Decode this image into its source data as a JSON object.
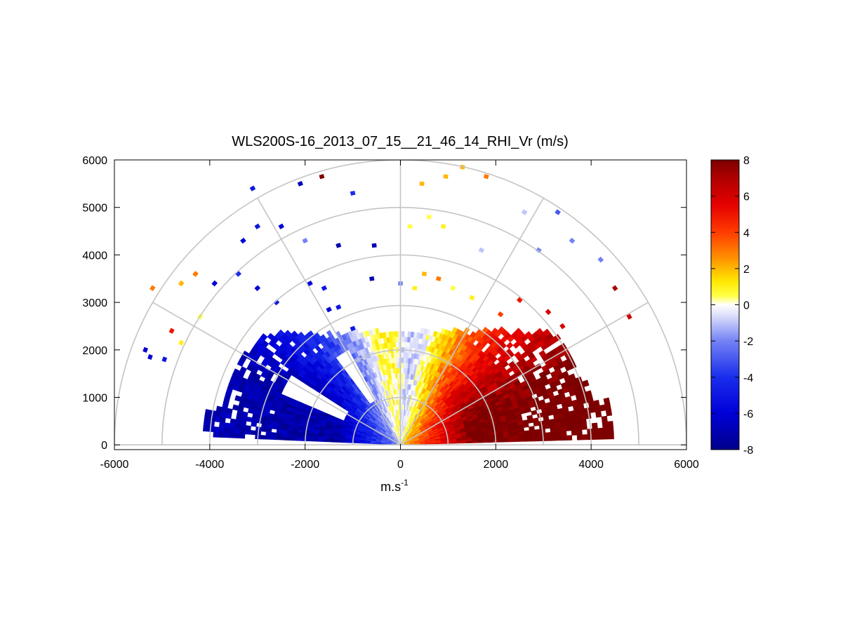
{
  "chart_data": {
    "type": "heatmap",
    "subtype": "polar-rhi-sector",
    "title": "WLS200S-16_2013_07_15__21_46_14_RHI_Vr (m/s)",
    "xlabel": "m.s",
    "xlabel_superscript": "-1",
    "ylabel": "",
    "xlim": [
      -6000,
      6000
    ],
    "ylim": [
      -100,
      6000
    ],
    "xticks": [
      -6000,
      -4000,
      -2000,
      0,
      2000,
      4000,
      6000
    ],
    "xtick_labels": [
      "-6000",
      "-4000",
      "-2000",
      "0",
      "2000",
      "4000",
      "6000"
    ],
    "yticks": [
      0,
      1000,
      2000,
      3000,
      4000,
      5000,
      6000
    ],
    "ytick_labels": [
      "0",
      "1000",
      "2000",
      "3000",
      "4000",
      "5000",
      "6000"
    ],
    "range_rings": [
      1000,
      2000,
      3000,
      4000,
      5000,
      6000
    ],
    "spoke_angles_deg": [
      0,
      30,
      60,
      90,
      120,
      150,
      180
    ],
    "colorbar": {
      "min": -8,
      "max": 8,
      "ticks": [
        8,
        6,
        4,
        2,
        0,
        -2,
        -4,
        -6,
        -8
      ],
      "tick_labels": [
        "8",
        "6",
        "4",
        "2",
        "0",
        "-2",
        "-4",
        "-6",
        "-8"
      ],
      "colormap": "blue-white-yellow-red"
    },
    "sector_scan": {
      "elevation_range_deg": [
        2,
        30
      ],
      "max_range_m": 4400,
      "description": "Dense radial velocity field: negative (blue) for x < 0, positive (yellow to dark red) for x > 0"
    },
    "scattered_cells": [
      {
        "x": -5350,
        "y": 2000,
        "v": -6
      },
      {
        "x": -5250,
        "y": 1850,
        "v": -6
      },
      {
        "x": -4950,
        "y": 1800,
        "v": -5
      },
      {
        "x": -4600,
        "y": 2150,
        "v": 1
      },
      {
        "x": -4200,
        "y": 2700,
        "v": 0.5
      },
      {
        "x": -3900,
        "y": 3400,
        "v": -6
      },
      {
        "x": -3400,
        "y": 3600,
        "v": -4
      },
      {
        "x": -3000,
        "y": 3300,
        "v": -6
      },
      {
        "x": -2600,
        "y": 3000,
        "v": -5
      },
      {
        "x": -1900,
        "y": 3400,
        "v": -6
      },
      {
        "x": -1600,
        "y": 3300,
        "v": -5
      },
      {
        "x": -1500,
        "y": 2850,
        "v": -6
      },
      {
        "x": -1300,
        "y": 2900,
        "v": -5
      },
      {
        "x": -1000,
        "y": 2450,
        "v": -5
      },
      {
        "x": -600,
        "y": 3500,
        "v": -7
      },
      {
        "x": 0,
        "y": 3400,
        "v": -2
      },
      {
        "x": 300,
        "y": 3300,
        "v": 1
      },
      {
        "x": 500,
        "y": 3600,
        "v": 2
      },
      {
        "x": 800,
        "y": 3500,
        "v": 3
      },
      {
        "x": 1100,
        "y": 3300,
        "v": 0.5
      },
      {
        "x": 1500,
        "y": 3100,
        "v": 1
      },
      {
        "x": 2100,
        "y": 2750,
        "v": 4
      },
      {
        "x": 2500,
        "y": 3050,
        "v": 5
      },
      {
        "x": 3100,
        "y": 2800,
        "v": 6
      },
      {
        "x": 3400,
        "y": 2500,
        "v": 6
      },
      {
        "x": -4300,
        "y": 3600,
        "v": 3
      },
      {
        "x": -4600,
        "y": 3400,
        "v": 2
      },
      {
        "x": -5200,
        "y": 3300,
        "v": 3
      },
      {
        "x": -4800,
        "y": 2400,
        "v": 5
      },
      {
        "x": -3300,
        "y": 4300,
        "v": -6
      },
      {
        "x": -3000,
        "y": 4600,
        "v": -5
      },
      {
        "x": -2500,
        "y": 4600,
        "v": -6
      },
      {
        "x": -2000,
        "y": 4300,
        "v": -2
      },
      {
        "x": -1300,
        "y": 4200,
        "v": -7
      },
      {
        "x": -550,
        "y": 4200,
        "v": -7
      },
      {
        "x": 200,
        "y": 4600,
        "v": 0.5
      },
      {
        "x": 600,
        "y": 4800,
        "v": 0.5
      },
      {
        "x": 900,
        "y": 4600,
        "v": 1
      },
      {
        "x": 1700,
        "y": 4100,
        "v": -1
      },
      {
        "x": 2900,
        "y": 4100,
        "v": -2
      },
      {
        "x": 3600,
        "y": 4300,
        "v": -2
      },
      {
        "x": 4200,
        "y": 3900,
        "v": -2
      },
      {
        "x": 4500,
        "y": 3300,
        "v": 7
      },
      {
        "x": 4800,
        "y": 2700,
        "v": 6
      },
      {
        "x": -3100,
        "y": 5400,
        "v": -5
      },
      {
        "x": -2100,
        "y": 5500,
        "v": -7
      },
      {
        "x": -1650,
        "y": 5650,
        "v": 8
      },
      {
        "x": -1000,
        "y": 5300,
        "v": -4
      },
      {
        "x": 450,
        "y": 5500,
        "v": 2
      },
      {
        "x": 950,
        "y": 5650,
        "v": 2
      },
      {
        "x": 1300,
        "y": 5850,
        "v": 2
      },
      {
        "x": 1800,
        "y": 5650,
        "v": 3
      },
      {
        "x": 2600,
        "y": 4900,
        "v": -1
      },
      {
        "x": 3300,
        "y": 4900,
        "v": -3
      }
    ]
  }
}
